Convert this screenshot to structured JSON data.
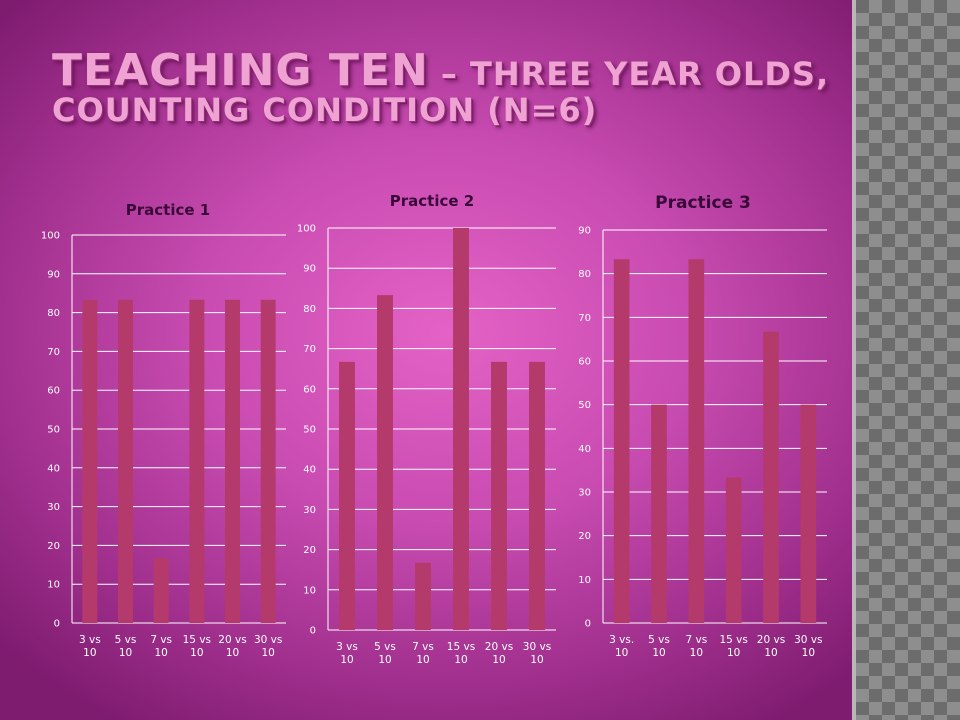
{
  "slide": {
    "title_main": "Teaching Ten",
    "title_dash": " – ",
    "title_rest": "Three year olds,",
    "title_line2": "Counting condition (N=6)"
  },
  "colors": {
    "bar": "#b53a6c",
    "grid": "#ffffff",
    "title_text": "#eea3d2"
  },
  "chart_data": [
    {
      "type": "bar",
      "title": "Practice 1",
      "categories": [
        [
          "3 vs",
          "10"
        ],
        [
          "5 vs",
          "10"
        ],
        [
          "7 vs",
          "10"
        ],
        [
          "15 vs",
          "10"
        ],
        [
          "20 vs",
          "10"
        ],
        [
          "30 vs",
          "10"
        ]
      ],
      "values": [
        83.3,
        83.3,
        16.7,
        83.3,
        83.3,
        83.3
      ],
      "ylim": [
        0,
        100
      ],
      "yticks": [
        0,
        10,
        20,
        30,
        40,
        50,
        60,
        70,
        80,
        90,
        100
      ],
      "grid": true
    },
    {
      "type": "bar",
      "title": "Practice 2",
      "categories": [
        [
          "3 vs",
          "10"
        ],
        [
          "5 vs",
          "10"
        ],
        [
          "7 vs",
          "10"
        ],
        [
          "15 vs",
          "10"
        ],
        [
          "20 vs",
          "10"
        ],
        [
          "30 vs",
          "10"
        ]
      ],
      "values": [
        66.7,
        83.3,
        16.7,
        100,
        66.7,
        66.7
      ],
      "ylim": [
        0,
        100
      ],
      "yticks": [
        0,
        10,
        20,
        30,
        40,
        50,
        60,
        70,
        80,
        90,
        100
      ],
      "grid": true
    },
    {
      "type": "bar",
      "title": "Practice 3",
      "categories": [
        [
          "3 vs.",
          "10"
        ],
        [
          "5 vs",
          "10"
        ],
        [
          "7 vs",
          "10"
        ],
        [
          "15 vs",
          "10"
        ],
        [
          "20 vs",
          "10"
        ],
        [
          "30 vs",
          "10"
        ]
      ],
      "values": [
        83.3,
        50,
        83.3,
        33.3,
        66.7,
        50
      ],
      "ylim": [
        0,
        90
      ],
      "yticks": [
        0,
        10,
        20,
        30,
        40,
        50,
        60,
        70,
        80,
        90
      ],
      "grid": true
    }
  ]
}
